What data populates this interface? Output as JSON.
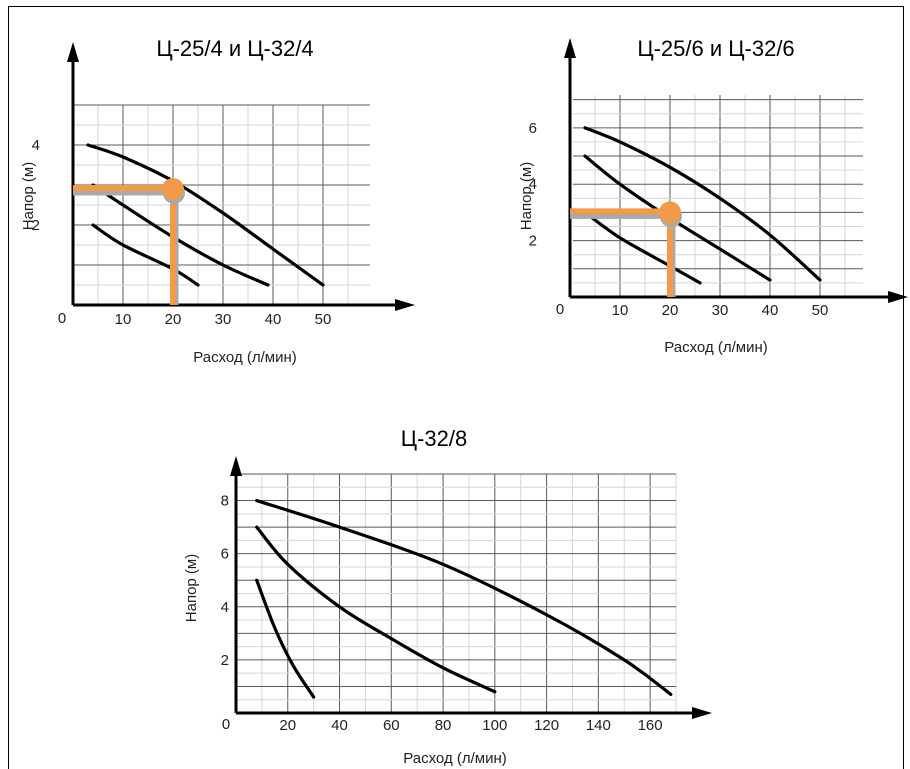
{
  "colors": {
    "marker": "#f39a4a",
    "marker_shadow": "#a9a9a9",
    "curve": "#000000",
    "major_grid": "#5a5a5a",
    "minor_grid": "#d6d6d6"
  },
  "chart_data": [
    {
      "type": "line",
      "title": "Ц-25/4 и Ц-32/4",
      "xlabel": "Расход (л/мин)",
      "ylabel": "Напор (м)",
      "x_ticks": [
        "10",
        "20",
        "30",
        "40",
        "50"
      ],
      "y_ticks": [
        "2",
        "4"
      ],
      "origin_label": "0",
      "xlim": [
        0,
        50
      ],
      "ylim": [
        0,
        5
      ],
      "grid": true,
      "series": [
        {
          "x": [
            3,
            10,
            20,
            30,
            40,
            50
          ],
          "y": [
            4.0,
            3.7,
            3.1,
            2.3,
            1.4,
            0.5
          ]
        },
        {
          "x": [
            4,
            10,
            20,
            30,
            39
          ],
          "y": [
            3.0,
            2.5,
            1.7,
            1.0,
            0.5
          ]
        },
        {
          "x": [
            4,
            10,
            20,
            25
          ],
          "y": [
            2.0,
            1.5,
            0.9,
            0.5
          ]
        }
      ],
      "operating_point": {
        "x": 20,
        "y": 2.9
      }
    },
    {
      "type": "line",
      "title": "Ц-25/6 и Ц-32/6",
      "xlabel": "Расход (л/мин)",
      "ylabel": "Напор (м)",
      "x_ticks": [
        "10",
        "20",
        "30",
        "40",
        "50"
      ],
      "y_ticks": [
        "2",
        "4",
        "6"
      ],
      "origin_label": "0",
      "xlim": [
        0,
        50
      ],
      "ylim": [
        0,
        7.2
      ],
      "grid": true,
      "series": [
        {
          "x": [
            3,
            10,
            20,
            30,
            40,
            50
          ],
          "y": [
            6.0,
            5.5,
            4.6,
            3.5,
            2.2,
            0.6
          ]
        },
        {
          "x": [
            3,
            10,
            20,
            30,
            40
          ],
          "y": [
            5.0,
            4.0,
            2.8,
            1.7,
            0.6
          ]
        },
        {
          "x": [
            3,
            10,
            20,
            26
          ],
          "y": [
            3.0,
            2.1,
            1.1,
            0.5
          ]
        }
      ],
      "operating_point": {
        "x": 20,
        "y": 3.0
      }
    },
    {
      "type": "line",
      "title": "Ц-32/8",
      "xlabel": "Расход (л/мин)",
      "ylabel": "Напор (м)",
      "x_ticks": [
        "20",
        "40",
        "60",
        "80",
        "100",
        "120",
        "140",
        "160"
      ],
      "y_ticks": [
        "2",
        "4",
        "6",
        "8"
      ],
      "origin_label": "0",
      "xlim": [
        0,
        170
      ],
      "ylim": [
        0,
        9
      ],
      "grid": true,
      "series": [
        {
          "x": [
            8,
            40,
            80,
            120,
            150,
            168
          ],
          "y": [
            8.0,
            7.0,
            5.6,
            3.7,
            2.0,
            0.7
          ]
        },
        {
          "x": [
            8,
            20,
            40,
            60,
            80,
            100
          ],
          "y": [
            7.0,
            5.6,
            4.0,
            2.8,
            1.7,
            0.8
          ]
        },
        {
          "x": [
            8,
            15,
            22,
            30
          ],
          "y": [
            5.0,
            3.2,
            1.8,
            0.6
          ]
        }
      ]
    }
  ]
}
